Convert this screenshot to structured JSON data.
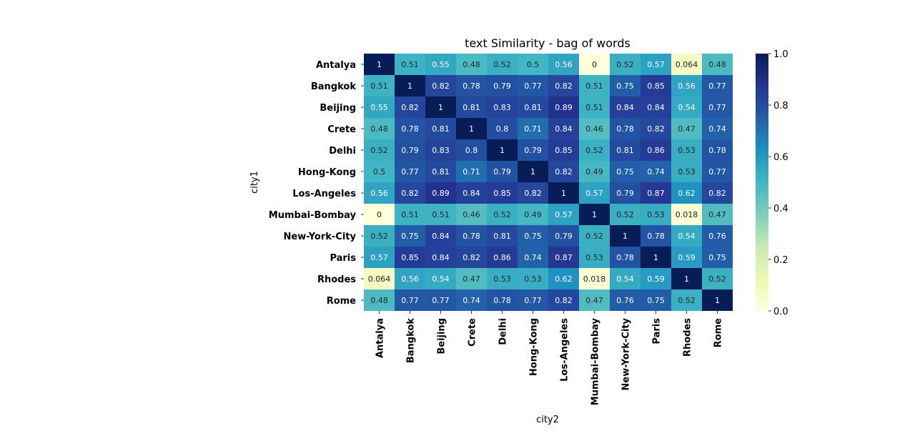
{
  "chart_data": {
    "type": "heatmap",
    "title": "text Similarity - bag of words",
    "xlabel": "city2",
    "ylabel": "city1",
    "rows": [
      "Antalya",
      "Bangkok",
      "Beijing",
      "Crete",
      "Delhi",
      "Hong-Kong",
      "Los-Angeles",
      "Mumbai-Bombay",
      "New-York-City",
      "Paris",
      "Rhodes",
      "Rome"
    ],
    "columns": [
      "Antalya",
      "Bangkok",
      "Beijing",
      "Crete",
      "Delhi",
      "Hong-Kong",
      "Los-Angeles",
      "Mumbai-Bombay",
      "New-York-City",
      "Paris",
      "Rhodes",
      "Rome"
    ],
    "values": [
      [
        1,
        0.51,
        0.55,
        0.48,
        0.52,
        0.5,
        0.56,
        0,
        0.52,
        0.57,
        0.064,
        0.48
      ],
      [
        0.51,
        1,
        0.82,
        0.78,
        0.79,
        0.77,
        0.82,
        0.51,
        0.75,
        0.85,
        0.56,
        0.77
      ],
      [
        0.55,
        0.82,
        1,
        0.81,
        0.83,
        0.81,
        0.89,
        0.51,
        0.84,
        0.84,
        0.54,
        0.77
      ],
      [
        0.48,
        0.78,
        0.81,
        1,
        0.8,
        0.71,
        0.84,
        0.46,
        0.78,
        0.82,
        0.47,
        0.74
      ],
      [
        0.52,
        0.79,
        0.83,
        0.8,
        1,
        0.79,
        0.85,
        0.52,
        0.81,
        0.86,
        0.53,
        0.78
      ],
      [
        0.5,
        0.77,
        0.81,
        0.71,
        0.79,
        1,
        0.82,
        0.49,
        0.75,
        0.74,
        0.53,
        0.77
      ],
      [
        0.56,
        0.82,
        0.89,
        0.84,
        0.85,
        0.82,
        1,
        0.57,
        0.79,
        0.87,
        0.62,
        0.82
      ],
      [
        0,
        0.51,
        0.51,
        0.46,
        0.52,
        0.49,
        0.57,
        1,
        0.52,
        0.53,
        0.018,
        0.47
      ],
      [
        0.52,
        0.75,
        0.84,
        0.78,
        0.81,
        0.75,
        0.79,
        0.52,
        1,
        0.78,
        0.54,
        0.76
      ],
      [
        0.57,
        0.85,
        0.84,
        0.82,
        0.86,
        0.74,
        0.87,
        0.53,
        0.78,
        1,
        0.59,
        0.75
      ],
      [
        0.064,
        0.56,
        0.54,
        0.47,
        0.53,
        0.53,
        0.62,
        0.018,
        0.54,
        0.59,
        1,
        0.52
      ],
      [
        0.48,
        0.77,
        0.77,
        0.74,
        0.78,
        0.77,
        0.82,
        0.47,
        0.76,
        0.75,
        0.52,
        1
      ]
    ],
    "value_labels": [
      [
        "1",
        "0.51",
        "0.55",
        "0.48",
        "0.52",
        "0.5",
        "0.56",
        "0",
        "0.52",
        "0.57",
        "0.064",
        "0.48"
      ],
      [
        "0.51",
        "1",
        "0.82",
        "0.78",
        "0.79",
        "0.77",
        "0.82",
        "0.51",
        "0.75",
        "0.85",
        "0.56",
        "0.77"
      ],
      [
        "0.55",
        "0.82",
        "1",
        "0.81",
        "0.83",
        "0.81",
        "0.89",
        "0.51",
        "0.84",
        "0.84",
        "0.54",
        "0.77"
      ],
      [
        "0.48",
        "0.78",
        "0.81",
        "1",
        "0.8",
        "0.71",
        "0.84",
        "0.46",
        "0.78",
        "0.82",
        "0.47",
        "0.74"
      ],
      [
        "0.52",
        "0.79",
        "0.83",
        "0.8",
        "1",
        "0.79",
        "0.85",
        "0.52",
        "0.81",
        "0.86",
        "0.53",
        "0.78"
      ],
      [
        "0.5",
        "0.77",
        "0.81",
        "0.71",
        "0.79",
        "1",
        "0.82",
        "0.49",
        "0.75",
        "0.74",
        "0.53",
        "0.77"
      ],
      [
        "0.56",
        "0.82",
        "0.89",
        "0.84",
        "0.85",
        "0.82",
        "1",
        "0.57",
        "0.79",
        "0.87",
        "0.62",
        "0.82"
      ],
      [
        "0",
        "0.51",
        "0.51",
        "0.46",
        "0.52",
        "0.49",
        "0.57",
        "1",
        "0.52",
        "0.53",
        "0.018",
        "0.47"
      ],
      [
        "0.52",
        "0.75",
        "0.84",
        "0.78",
        "0.81",
        "0.75",
        "0.79",
        "0.52",
        "1",
        "0.78",
        "0.54",
        "0.76"
      ],
      [
        "0.57",
        "0.85",
        "0.84",
        "0.82",
        "0.86",
        "0.74",
        "0.87",
        "0.53",
        "0.78",
        "1",
        "0.59",
        "0.75"
      ],
      [
        "0.064",
        "0.56",
        "0.54",
        "0.47",
        "0.53",
        "0.53",
        "0.62",
        "0.018",
        "0.54",
        "0.59",
        "1",
        "0.52"
      ],
      [
        "0.48",
        "0.77",
        "0.77",
        "0.74",
        "0.78",
        "0.77",
        "0.82",
        "0.47",
        "0.76",
        "0.75",
        "0.52",
        "1"
      ]
    ],
    "colorbar": {
      "range": [
        0,
        1
      ],
      "ticks": [
        0,
        0.2,
        0.4,
        0.6,
        0.8,
        1.0
      ],
      "tick_labels": [
        "0.0",
        "0.2",
        "0.4",
        "0.6",
        "0.8",
        "1.0"
      ]
    },
    "colormap": [
      "#ffffd9",
      "#edf8b1",
      "#c7e9b4",
      "#7fcdbb",
      "#41b6c4",
      "#1d91c0",
      "#225ea8",
      "#253494",
      "#081d58"
    ],
    "grid": false,
    "legend": "colorbar-right"
  }
}
